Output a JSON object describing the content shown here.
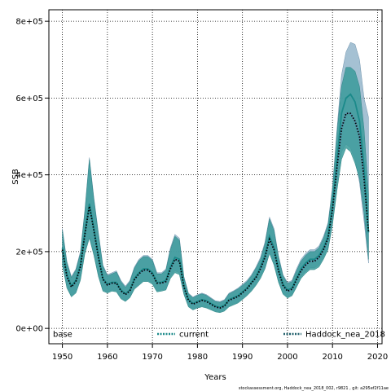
{
  "chart_data": {
    "type": "line",
    "xlabel": "Years",
    "ylabel": "SSB",
    "xlim": [
      1947,
      2021
    ],
    "ylim": [
      -40000,
      830000
    ],
    "xticks": [
      1950,
      1960,
      1970,
      1980,
      1990,
      2000,
      2010,
      2020
    ],
    "yticks": [
      0,
      200000,
      400000,
      600000,
      800000
    ],
    "ytick_labels": [
      "0e+00",
      "2e+05",
      "4e+05",
      "6e+05",
      "8e+05"
    ],
    "grid": true,
    "legend": {
      "placement": "bottom",
      "entries": [
        "base",
        "current",
        "Haddock_nea_2018"
      ]
    },
    "footer": "stockassessment.org, Haddock_nea_2018_002, r9821 , git: a295ef2f11ae",
    "colors": {
      "current": "#1b8a8a",
      "base": "#5b8db0",
      "Haddock_nea_2018": "#1f5f6a",
      "band_current": "#3a9a9a",
      "band_base": "#8fb1c8"
    },
    "x": [
      1950,
      1951,
      1952,
      1953,
      1954,
      1955,
      1956,
      1957,
      1958,
      1959,
      1960,
      1961,
      1962,
      1963,
      1964,
      1965,
      1966,
      1967,
      1968,
      1969,
      1970,
      1971,
      1972,
      1973,
      1974,
      1975,
      1976,
      1977,
      1978,
      1979,
      1980,
      1981,
      1982,
      1983,
      1984,
      1985,
      1986,
      1987,
      1988,
      1989,
      1990,
      1991,
      1992,
      1993,
      1994,
      1995,
      1996,
      1997,
      1998,
      1999,
      2000,
      2001,
      2002,
      2003,
      2004,
      2005,
      2006,
      2007,
      2008,
      2009,
      2010,
      2011,
      2012,
      2013,
      2014,
      2015,
      2016,
      2017,
      2018
    ],
    "series": [
      {
        "name": "current",
        "values": [
          210000,
          140000,
          110000,
          125000,
          165000,
          250000,
          325000,
          260000,
          190000,
          130000,
          115000,
          120000,
          120000,
          100000,
          90000,
          100000,
          130000,
          145000,
          155000,
          155000,
          145000,
          120000,
          120000,
          125000,
          160000,
          185000,
          180000,
          110000,
          75000,
          65000,
          70000,
          75000,
          72000,
          65000,
          58000,
          55000,
          60000,
          75000,
          80000,
          85000,
          95000,
          105000,
          120000,
          135000,
          160000,
          190000,
          240000,
          210000,
          155000,
          115000,
          100000,
          105000,
          130000,
          155000,
          170000,
          180000,
          180000,
          190000,
          210000,
          240000,
          320000,
          440000,
          560000,
          600000,
          610000,
          590000,
          540000,
          420000,
          250000
        ],
        "lower": [
          170000,
          110000,
          85000,
          95000,
          130000,
          200000,
          240000,
          195000,
          140000,
          100000,
          95000,
          100000,
          98000,
          80000,
          72000,
          82000,
          105000,
          115000,
          125000,
          125000,
          118000,
          98000,
          100000,
          102000,
          135000,
          150000,
          145000,
          90000,
          58000,
          50000,
          55000,
          58000,
          55000,
          50000,
          45000,
          43000,
          47000,
          58000,
          63000,
          68000,
          78000,
          88000,
          100000,
          115000,
          135000,
          160000,
          200000,
          170000,
          125000,
          92000,
          82000,
          88000,
          110000,
          135000,
          148000,
          158000,
          158000,
          165000,
          185000,
          210000,
          280000,
          380000,
          460000,
          480000,
          470000,
          440000,
          380000,
          280000,
          170000
        ],
        "upper": [
          260000,
          175000,
          135000,
          155000,
          200000,
          310000,
          445000,
          340000,
          250000,
          165000,
          140000,
          145000,
          150000,
          125000,
          110000,
          125000,
          160000,
          180000,
          190000,
          190000,
          180000,
          145000,
          145000,
          155000,
          210000,
          245000,
          235000,
          135000,
          92000,
          82000,
          88000,
          92000,
          88000,
          80000,
          72000,
          70000,
          75000,
          92000,
          98000,
          105000,
          115000,
          125000,
          140000,
          160000,
          185000,
          225000,
          290000,
          260000,
          190000,
          140000,
          120000,
          125000,
          155000,
          180000,
          195000,
          205000,
          205000,
          215000,
          240000,
          275000,
          370000,
          520000,
          660000,
          720000,
          745000,
          740000,
          700000,
          600000,
          550000
        ]
      },
      {
        "name": "base",
        "values": [
          205000,
          135000,
          108000,
          122000,
          160000,
          245000,
          318000,
          255000,
          185000,
          128000,
          113000,
          118000,
          118000,
          98000,
          88000,
          98000,
          127000,
          142000,
          152000,
          152000,
          142000,
          118000,
          118000,
          122000,
          155000,
          180000,
          175000,
          108000,
          73000,
          63000,
          68000,
          73000,
          70000,
          63000,
          56000,
          53000,
          58000,
          73000,
          78000,
          83000,
          93000,
          103000,
          118000,
          132000,
          155000,
          185000,
          232000,
          205000,
          150000,
          112000,
          97000,
          102000,
          127000,
          150000,
          165000,
          175000,
          175000,
          185000,
          205000,
          235000,
          310000,
          420000,
          520000,
          560000,
          560000,
          540000,
          500000,
          390000,
          250000
        ],
        "lower": [
          165000,
          105000,
          82000,
          92000,
          125000,
          195000,
          235000,
          190000,
          135000,
          97000,
          92000,
          97000,
          95000,
          77000,
          70000,
          80000,
          102000,
          112000,
          122000,
          122000,
          115000,
          95000,
          97000,
          100000,
          130000,
          145000,
          140000,
          88000,
          56000,
          48000,
          53000,
          56000,
          53000,
          48000,
          43000,
          41000,
          45000,
          56000,
          61000,
          66000,
          75000,
          85000,
          97000,
          112000,
          130000,
          155000,
          195000,
          165000,
          120000,
          89000,
          79000,
          85000,
          107000,
          130000,
          143000,
          153000,
          153000,
          160000,
          180000,
          205000,
          270000,
          360000,
          440000,
          470000,
          460000,
          430000,
          390000,
          300000,
          180000
        ],
        "upper": [
          255000,
          170000,
          132000,
          152000,
          195000,
          305000,
          440000,
          335000,
          245000,
          162000,
          137000,
          142000,
          147000,
          122000,
          107000,
          122000,
          157000,
          177000,
          187000,
          187000,
          177000,
          142000,
          142000,
          152000,
          205000,
          240000,
          230000,
          132000,
          90000,
          80000,
          86000,
          90000,
          86000,
          78000,
          70000,
          68000,
          73000,
          90000,
          96000,
          103000,
          112000,
          122000,
          137000,
          157000,
          180000,
          220000,
          285000,
          255000,
          185000,
          137000,
          117000,
          122000,
          150000,
          175000,
          190000,
          200000,
          200000,
          210000,
          235000,
          270000,
          360000,
          510000,
          630000,
          680000,
          680000,
          670000,
          630000,
          520000,
          350000
        ]
      },
      {
        "name": "Haddock_nea_2018",
        "values": [
          205000,
          135000,
          108000,
          122000,
          160000,
          245000,
          318000,
          255000,
          185000,
          128000,
          113000,
          118000,
          118000,
          98000,
          88000,
          98000,
          127000,
          142000,
          152000,
          152000,
          142000,
          118000,
          118000,
          122000,
          155000,
          180000,
          175000,
          108000,
          73000,
          63000,
          68000,
          73000,
          70000,
          63000,
          56000,
          53000,
          58000,
          73000,
          78000,
          83000,
          93000,
          103000,
          118000,
          132000,
          155000,
          185000,
          232000,
          205000,
          150000,
          112000,
          97000,
          102000,
          127000,
          150000,
          165000,
          175000,
          175000,
          185000,
          205000,
          235000,
          310000,
          420000,
          520000,
          560000,
          560000,
          540000,
          500000,
          390000,
          250000
        ]
      }
    ]
  }
}
